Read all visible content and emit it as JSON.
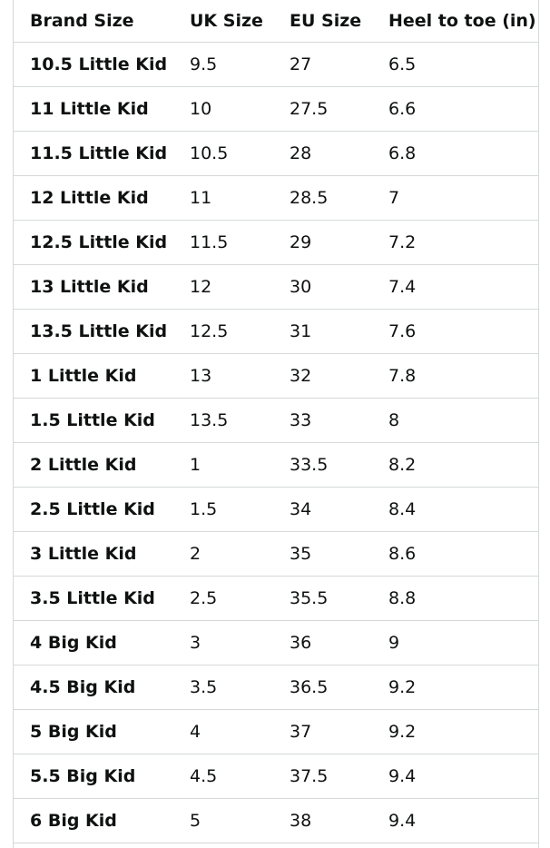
{
  "table": {
    "headers": [
      "Brand Size",
      "UK Size",
      "EU Size",
      "Heel to toe (in)"
    ],
    "rows": [
      [
        "10.5 Little Kid",
        "9.5",
        "27",
        "6.5"
      ],
      [
        "11 Little Kid",
        "10",
        "27.5",
        "6.6"
      ],
      [
        "11.5 Little Kid",
        "10.5",
        "28",
        "6.8"
      ],
      [
        "12 Little Kid",
        "11",
        "28.5",
        "7"
      ],
      [
        "12.5 Little Kid",
        "11.5",
        "29",
        "7.2"
      ],
      [
        "13 Little Kid",
        "12",
        "30",
        "7.4"
      ],
      [
        "13.5 Little Kid",
        "12.5",
        "31",
        "7.6"
      ],
      [
        "1 Little Kid",
        "13",
        "32",
        "7.8"
      ],
      [
        "1.5 Little Kid",
        "13.5",
        "33",
        "8"
      ],
      [
        "2 Little Kid",
        "1",
        "33.5",
        "8.2"
      ],
      [
        "2.5 Little Kid",
        "1.5",
        "34",
        "8.4"
      ],
      [
        "3 Little Kid",
        "2",
        "35",
        "8.6"
      ],
      [
        "3.5 Little Kid",
        "2.5",
        "35.5",
        "8.8"
      ],
      [
        "4 Big Kid",
        "3",
        "36",
        "9"
      ],
      [
        "4.5 Big Kid",
        "3.5",
        "36.5",
        "9.2"
      ],
      [
        "5 Big Kid",
        "4",
        "37",
        "9.2"
      ],
      [
        "5.5 Big Kid",
        "4.5",
        "37.5",
        "9.4"
      ],
      [
        "6 Big Kid",
        "5",
        "38",
        "9.4"
      ]
    ]
  }
}
